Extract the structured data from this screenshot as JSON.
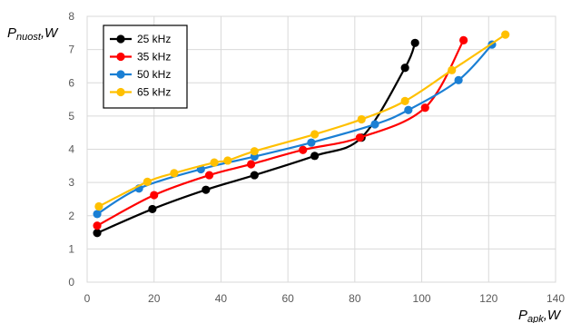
{
  "chart_data": {
    "type": "line",
    "title": "",
    "ylabel": {
      "main": "P",
      "sub": "nuost",
      "unit": ",W"
    },
    "xlabel": {
      "main": "P",
      "sub": "apk",
      "unit": ",W"
    },
    "xlim": [
      0,
      140
    ],
    "ylim": [
      0,
      8
    ],
    "xticks": [
      "0",
      "20",
      "40",
      "60",
      "80",
      "100",
      "120",
      "140"
    ],
    "yticks": [
      "0",
      "1",
      "2",
      "3",
      "4",
      "5",
      "6",
      "7",
      "8"
    ],
    "grid": true,
    "legend_position": "top-left",
    "series": [
      {
        "name": "25 kHz",
        "color": "#000000",
        "x": [
          3,
          19.5,
          35.5,
          50,
          68,
          82,
          95,
          98
        ],
        "y": [
          1.48,
          2.2,
          2.78,
          3.22,
          3.8,
          4.35,
          6.45,
          7.2
        ]
      },
      {
        "name": "35 kHz",
        "color": "#ff0000",
        "x": [
          3,
          20,
          36.5,
          49,
          64.5,
          81.5,
          101,
          112.5
        ],
        "y": [
          1.7,
          2.62,
          3.22,
          3.55,
          3.98,
          4.35,
          5.25,
          7.28
        ]
      },
      {
        "name": "50 kHz",
        "color": "#1a7fd4",
        "x": [
          3,
          15.5,
          34,
          50,
          67,
          86,
          96,
          111,
          121
        ],
        "y": [
          2.05,
          2.82,
          3.4,
          3.78,
          4.2,
          4.75,
          5.18,
          6.08,
          7.15
        ]
      },
      {
        "name": "65 kHz",
        "color": "#ffc000",
        "x": [
          3.5,
          18,
          26,
          38,
          42,
          50,
          68,
          82,
          95,
          109,
          125
        ],
        "y": [
          2.28,
          3.02,
          3.28,
          3.6,
          3.66,
          3.94,
          4.45,
          4.9,
          5.45,
          6.38,
          7.45
        ]
      }
    ]
  }
}
